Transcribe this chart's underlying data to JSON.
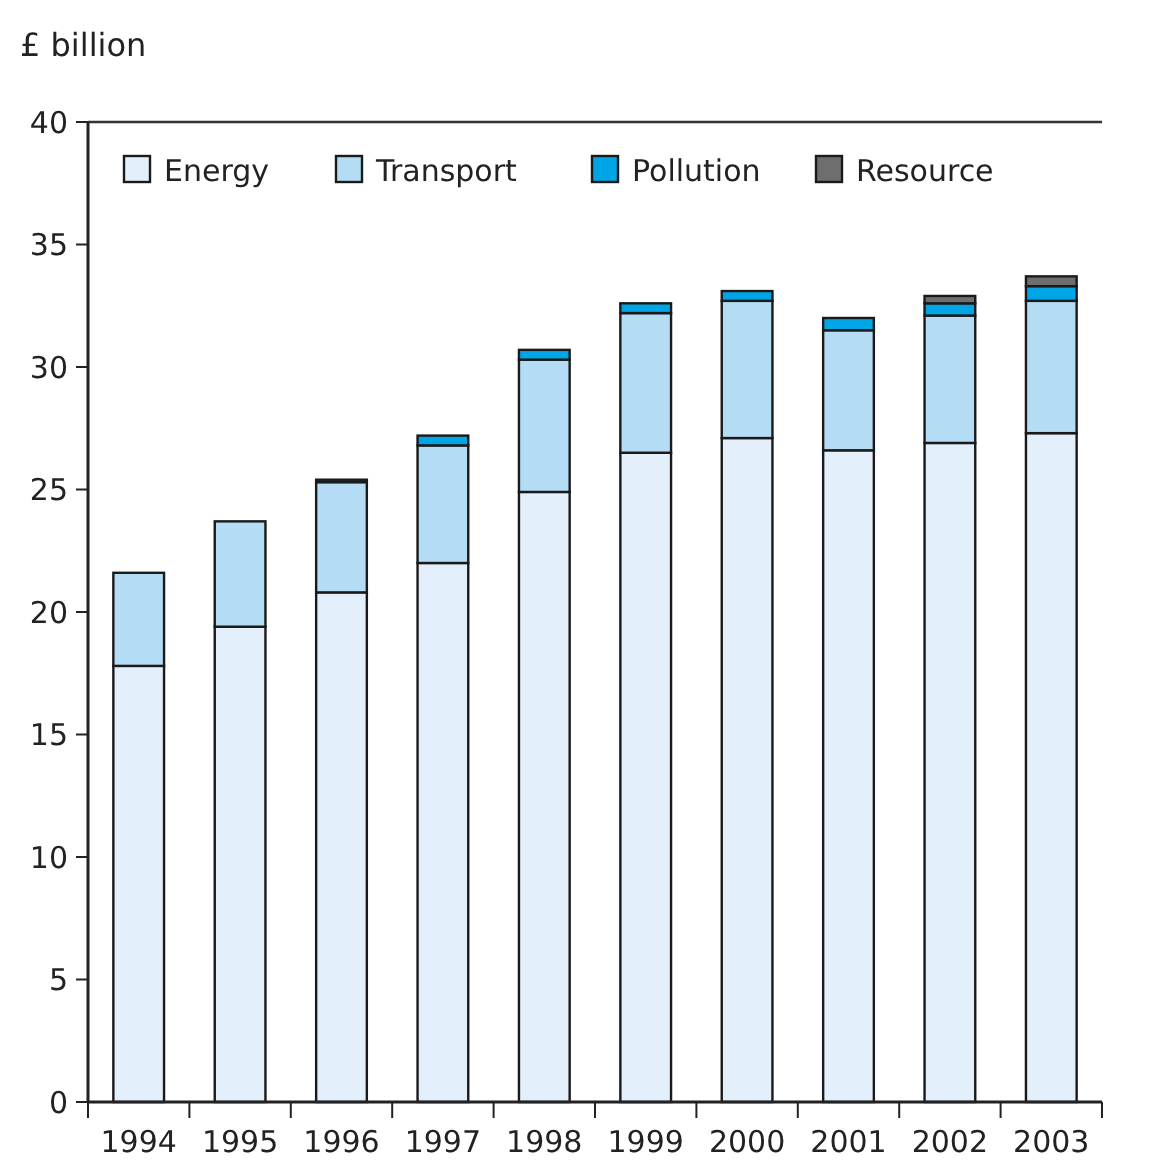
{
  "chart_data": {
    "type": "bar",
    "stacked": true,
    "ylabel": "£ billion",
    "categories": [
      "1994",
      "1995",
      "1996",
      "1997",
      "1998",
      "1999",
      "2000",
      "2001",
      "2002",
      "2003"
    ],
    "series": [
      {
        "name": "Energy",
        "color": "#e3f0fb",
        "values": [
          17.8,
          19.4,
          20.8,
          22.0,
          24.9,
          26.5,
          27.1,
          26.6,
          26.9,
          27.3
        ]
      },
      {
        "name": "Transport",
        "color": "#b5dcf5",
        "values": [
          3.8,
          4.3,
          4.5,
          4.8,
          5.4,
          5.7,
          5.6,
          4.9,
          5.2,
          5.4
        ]
      },
      {
        "name": "Pollution",
        "color": "#00a5e6",
        "values": [
          0,
          0,
          0.1,
          0.4,
          0.4,
          0.4,
          0.4,
          0.5,
          0.5,
          0.6
        ]
      },
      {
        "name": "Resource",
        "color": "#6e6e6e",
        "values": [
          0,
          0,
          0,
          0,
          0,
          0,
          0,
          0,
          0.3,
          0.4
        ]
      }
    ],
    "ylim": [
      0,
      40
    ],
    "yticks": [
      0,
      5,
      10,
      15,
      20,
      25,
      30,
      35,
      40
    ],
    "grid": false,
    "legend": "top"
  }
}
